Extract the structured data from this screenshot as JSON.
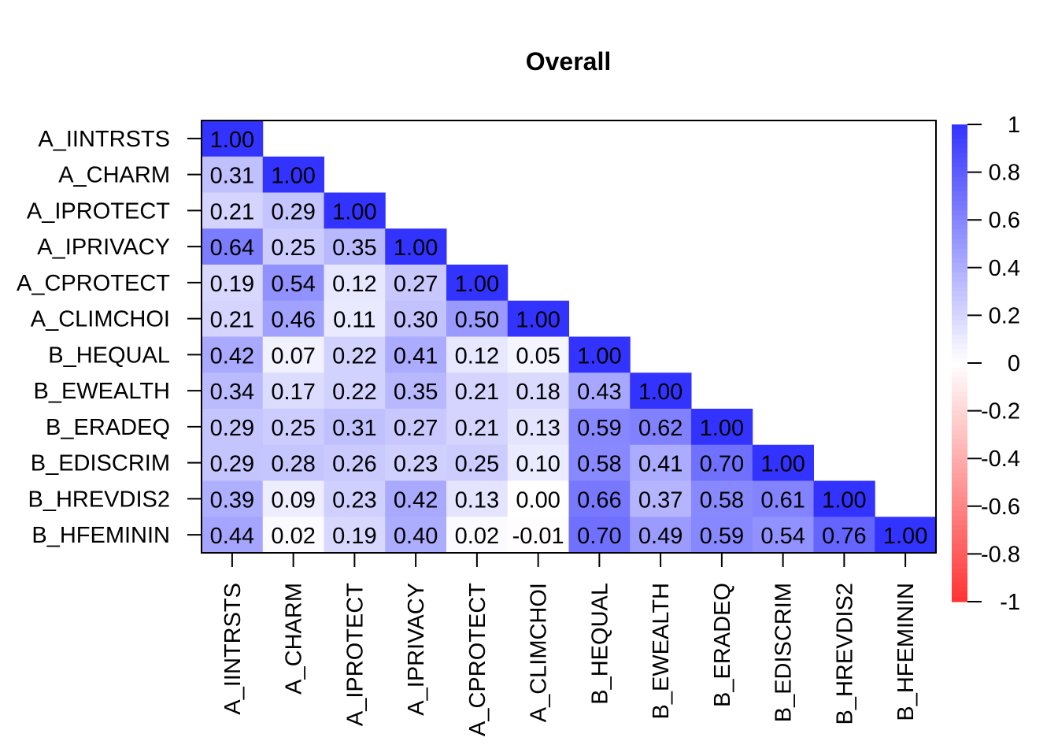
{
  "chart_data": {
    "type": "heatmap",
    "title": "Overall",
    "variables": [
      "A_IINTRSTS",
      "A_CHARM",
      "A_IPROTECT",
      "A_IPRIVACY",
      "A_CPROTECT",
      "A_CLIMCHOI",
      "B_HEQUAL",
      "B_EWEALTH",
      "B_ERADEQ",
      "B_EDISCRIM",
      "B_HREVDIS2",
      "B_HFEMININ"
    ],
    "matrix_lower": [
      [
        "1.00"
      ],
      [
        "0.31",
        "1.00"
      ],
      [
        "0.21",
        "0.29",
        "1.00"
      ],
      [
        "0.64",
        "0.25",
        "0.35",
        "1.00"
      ],
      [
        "0.19",
        "0.54",
        "0.12",
        "0.27",
        "1.00"
      ],
      [
        "0.21",
        "0.46",
        "0.11",
        "0.30",
        "0.50",
        "1.00"
      ],
      [
        "0.42",
        "0.07",
        "0.22",
        "0.41",
        "0.12",
        "0.05",
        "1.00"
      ],
      [
        "0.34",
        "0.17",
        "0.22",
        "0.35",
        "0.21",
        "0.18",
        "0.43",
        "1.00"
      ],
      [
        "0.29",
        "0.25",
        "0.31",
        "0.27",
        "0.21",
        "0.13",
        "0.59",
        "0.62",
        "1.00"
      ],
      [
        "0.29",
        "0.28",
        "0.26",
        "0.23",
        "0.25",
        "0.10",
        "0.58",
        "0.41",
        "0.70",
        "1.00"
      ],
      [
        "0.39",
        "0.09",
        "0.23",
        "0.42",
        "0.13",
        "0.00",
        "0.66",
        "0.37",
        "0.58",
        "0.61",
        "1.00"
      ],
      [
        "0.44",
        "0.02",
        "0.19",
        "0.40",
        "0.02",
        "-0.01",
        "0.70",
        "0.49",
        "0.59",
        "0.54",
        "0.76",
        "1.00"
      ]
    ],
    "color_scale": {
      "range": [
        -1,
        1
      ],
      "low_color": "#FF3333",
      "mid_color": "#FFFFFF",
      "high_color": "#3333FF",
      "ticks": [
        "1",
        "0.8",
        "0.6",
        "0.4",
        "0.2",
        "0",
        "-0.2",
        "-0.4",
        "-0.6",
        "-0.8",
        "-1"
      ]
    },
    "legend_placement": "right",
    "grid": false
  }
}
